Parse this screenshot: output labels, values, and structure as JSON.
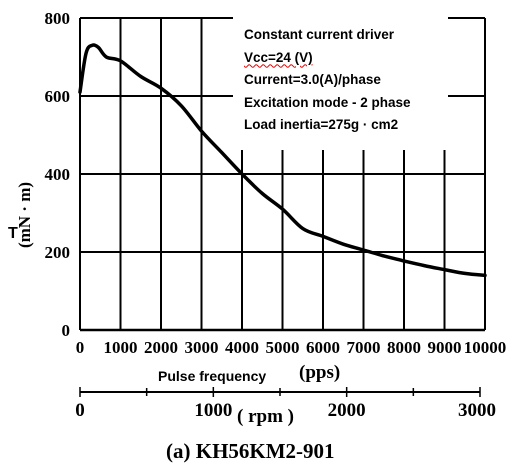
{
  "chart_data": {
    "type": "line",
    "title": "",
    "ylabel": "(mN · m)",
    "y_symbol": "T",
    "xlabel": "Pulse frequency",
    "x_unit": "(pps)",
    "xlim": [
      0,
      10000
    ],
    "ylim": [
      0,
      800
    ],
    "x_ticks": [
      "0",
      "1000",
      "2000",
      "3000",
      "4000",
      "5000",
      "6000",
      "7000",
      "8000",
      "9000",
      "10000"
    ],
    "y_ticks": [
      "0",
      "200",
      "400",
      "600",
      "800"
    ],
    "grid": true,
    "secondary_x_axis": {
      "unit": "( rpm )",
      "ticks": [
        "0",
        "1000",
        "2000",
        "3000"
      ],
      "range": [
        0,
        3000
      ]
    },
    "series": [
      {
        "x": [
          0,
          150,
          300,
          450,
          650,
          1000,
          1500,
          2000,
          2500,
          3000,
          3500,
          4000,
          4500,
          5000,
          5500,
          6000,
          6500,
          7000,
          7500,
          8000,
          8500,
          9000,
          9500,
          10000
        ],
        "y": [
          610,
          710,
          730,
          725,
          700,
          690,
          650,
          620,
          575,
          510,
          455,
          400,
          350,
          310,
          260,
          240,
          220,
          205,
          190,
          177,
          165,
          155,
          145,
          140
        ]
      }
    ]
  },
  "legend_lines": [
    "Constant current driver",
    "Vcc=24 (V)",
    "Current=3.0(A)/phase",
    "Excitation mode - 2 phase",
    "Load inertia=275g · cm2"
  ],
  "caption": "(a)  KH56KM2-901",
  "colors": {
    "line": "#000000",
    "grid": "#000000",
    "background": "#ffffff",
    "spellcheck": "#e00000"
  }
}
